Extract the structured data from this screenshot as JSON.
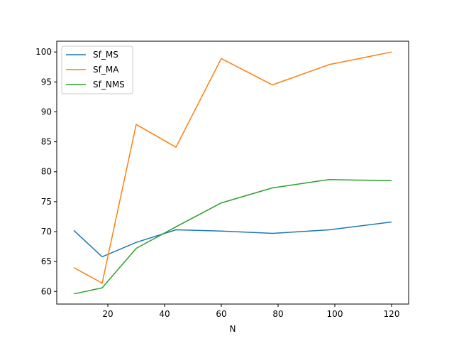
{
  "chart_data": {
    "type": "line",
    "title": "",
    "xlabel": "N",
    "ylabel": "",
    "xlim": [
      2,
      126
    ],
    "ylim": [
      57.9,
      101.8
    ],
    "x_ticks": [
      20,
      40,
      60,
      80,
      100,
      120
    ],
    "y_ticks": [
      60,
      65,
      70,
      75,
      80,
      85,
      90,
      95,
      100
    ],
    "x": [
      8,
      18,
      30,
      44,
      60,
      78,
      98,
      120
    ],
    "grid": false,
    "legend_position": "upper left",
    "series": [
      {
        "name": "Sf_MS",
        "color": "#1f77b4",
        "values": [
          70.2,
          65.8,
          68.2,
          70.3,
          70.1,
          69.7,
          70.3,
          71.6
        ]
      },
      {
        "name": "Sf_MA",
        "color": "#ff7f0e",
        "values": [
          64.0,
          61.4,
          87.9,
          84.1,
          98.9,
          94.5,
          97.9,
          100.0
        ]
      },
      {
        "name": "Sf_NMS",
        "color": "#2ca02c",
        "values": [
          59.6,
          60.6,
          67.2,
          70.8,
          74.8,
          77.3,
          78.7,
          78.5
        ]
      }
    ]
  }
}
